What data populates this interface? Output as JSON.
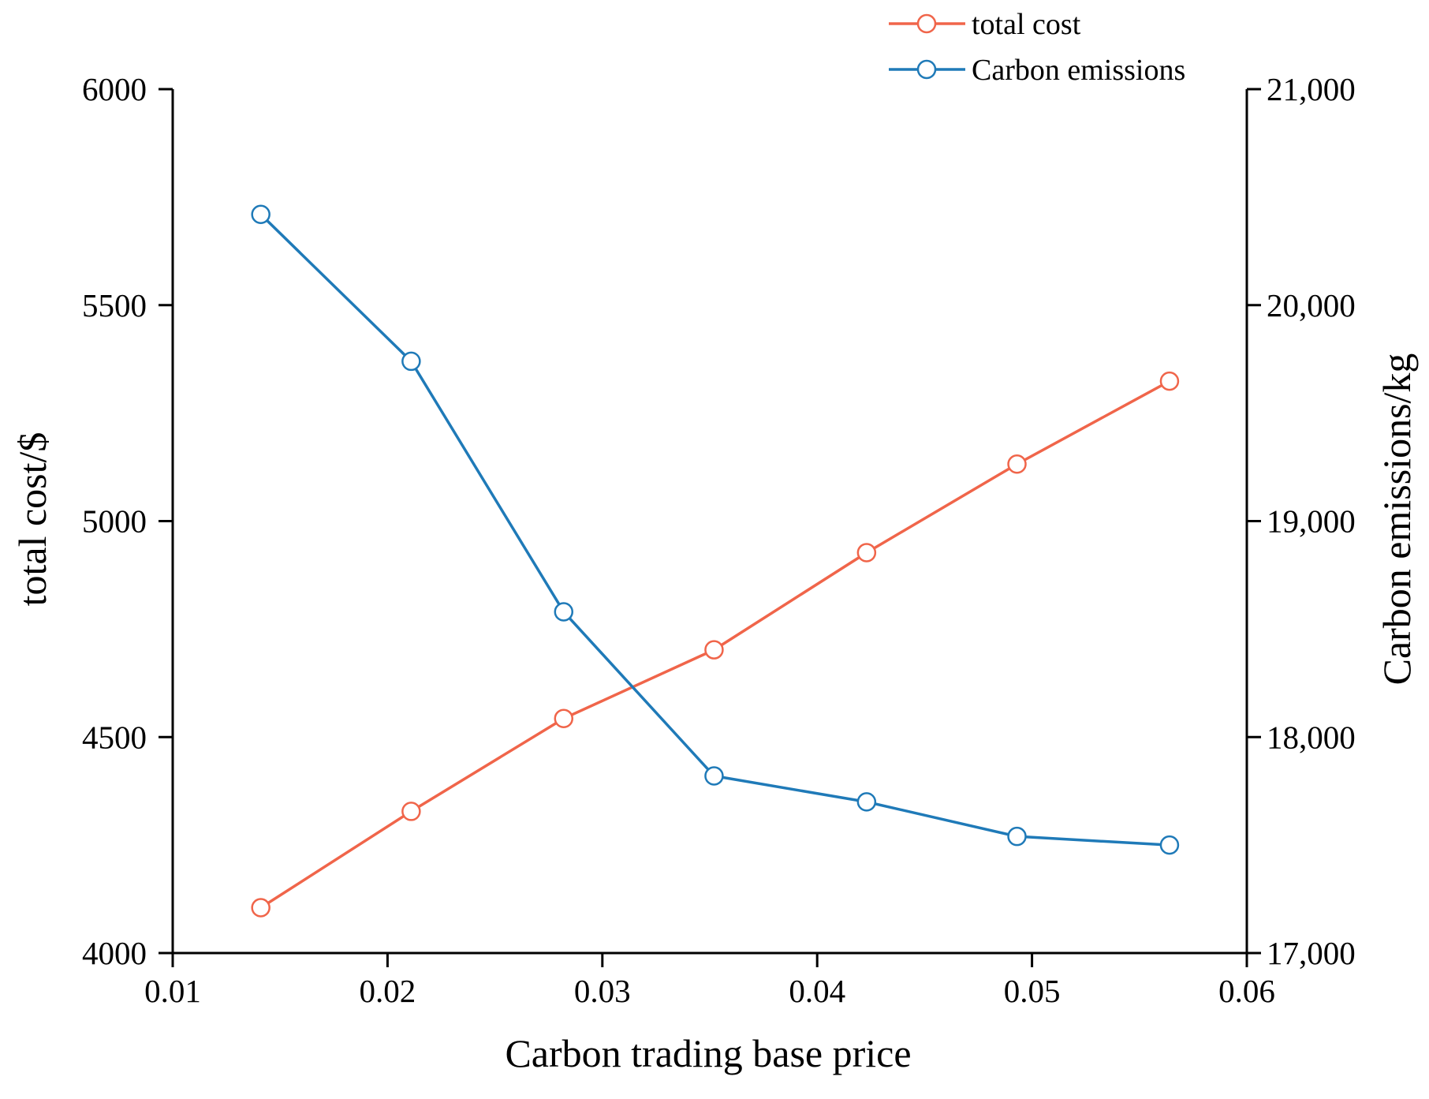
{
  "chart_data": {
    "type": "line",
    "title": "",
    "xlabel": "Carbon trading base price",
    "ylabel": "total cost/$",
    "y2label": "Carbon emissions/kg",
    "xlim": [
      0.01,
      0.06
    ],
    "ylim": [
      4000,
      6000
    ],
    "y2lim": [
      17000,
      21000
    ],
    "x_ticks": [
      0.01,
      0.02,
      0.03,
      0.04,
      0.05,
      0.06
    ],
    "x_tick_labels": [
      "0.01",
      "0.02",
      "0.03",
      "0.04",
      "0.05",
      "0.06"
    ],
    "y_ticks": [
      4000,
      4500,
      5000,
      5500,
      6000
    ],
    "y_tick_labels": [
      "4000",
      "4500",
      "5000",
      "5500",
      "6000"
    ],
    "y2_ticks": [
      17000,
      18000,
      19000,
      20000,
      21000
    ],
    "y2_tick_labels": [
      "17,000",
      "18,000",
      "19,000",
      "20,000",
      "21,000"
    ],
    "grid": false,
    "legend_position": "top-right",
    "x": [
      0.0141,
      0.0211,
      0.0282,
      0.0352,
      0.0423,
      0.0493,
      0.0564
    ],
    "series": [
      {
        "name": "total cost",
        "axis": "left",
        "color": "#f0654a",
        "marker": "hollow-circle",
        "values": [
          4105,
          4328,
          4543,
          4702,
          4927,
          5132,
          5324
        ]
      },
      {
        "name": "Carbon emissions",
        "axis": "right",
        "color": "#1f7ab8",
        "marker": "hollow-circle",
        "values": [
          20420,
          19740,
          18580,
          17820,
          17700,
          17540,
          17500
        ]
      }
    ]
  }
}
